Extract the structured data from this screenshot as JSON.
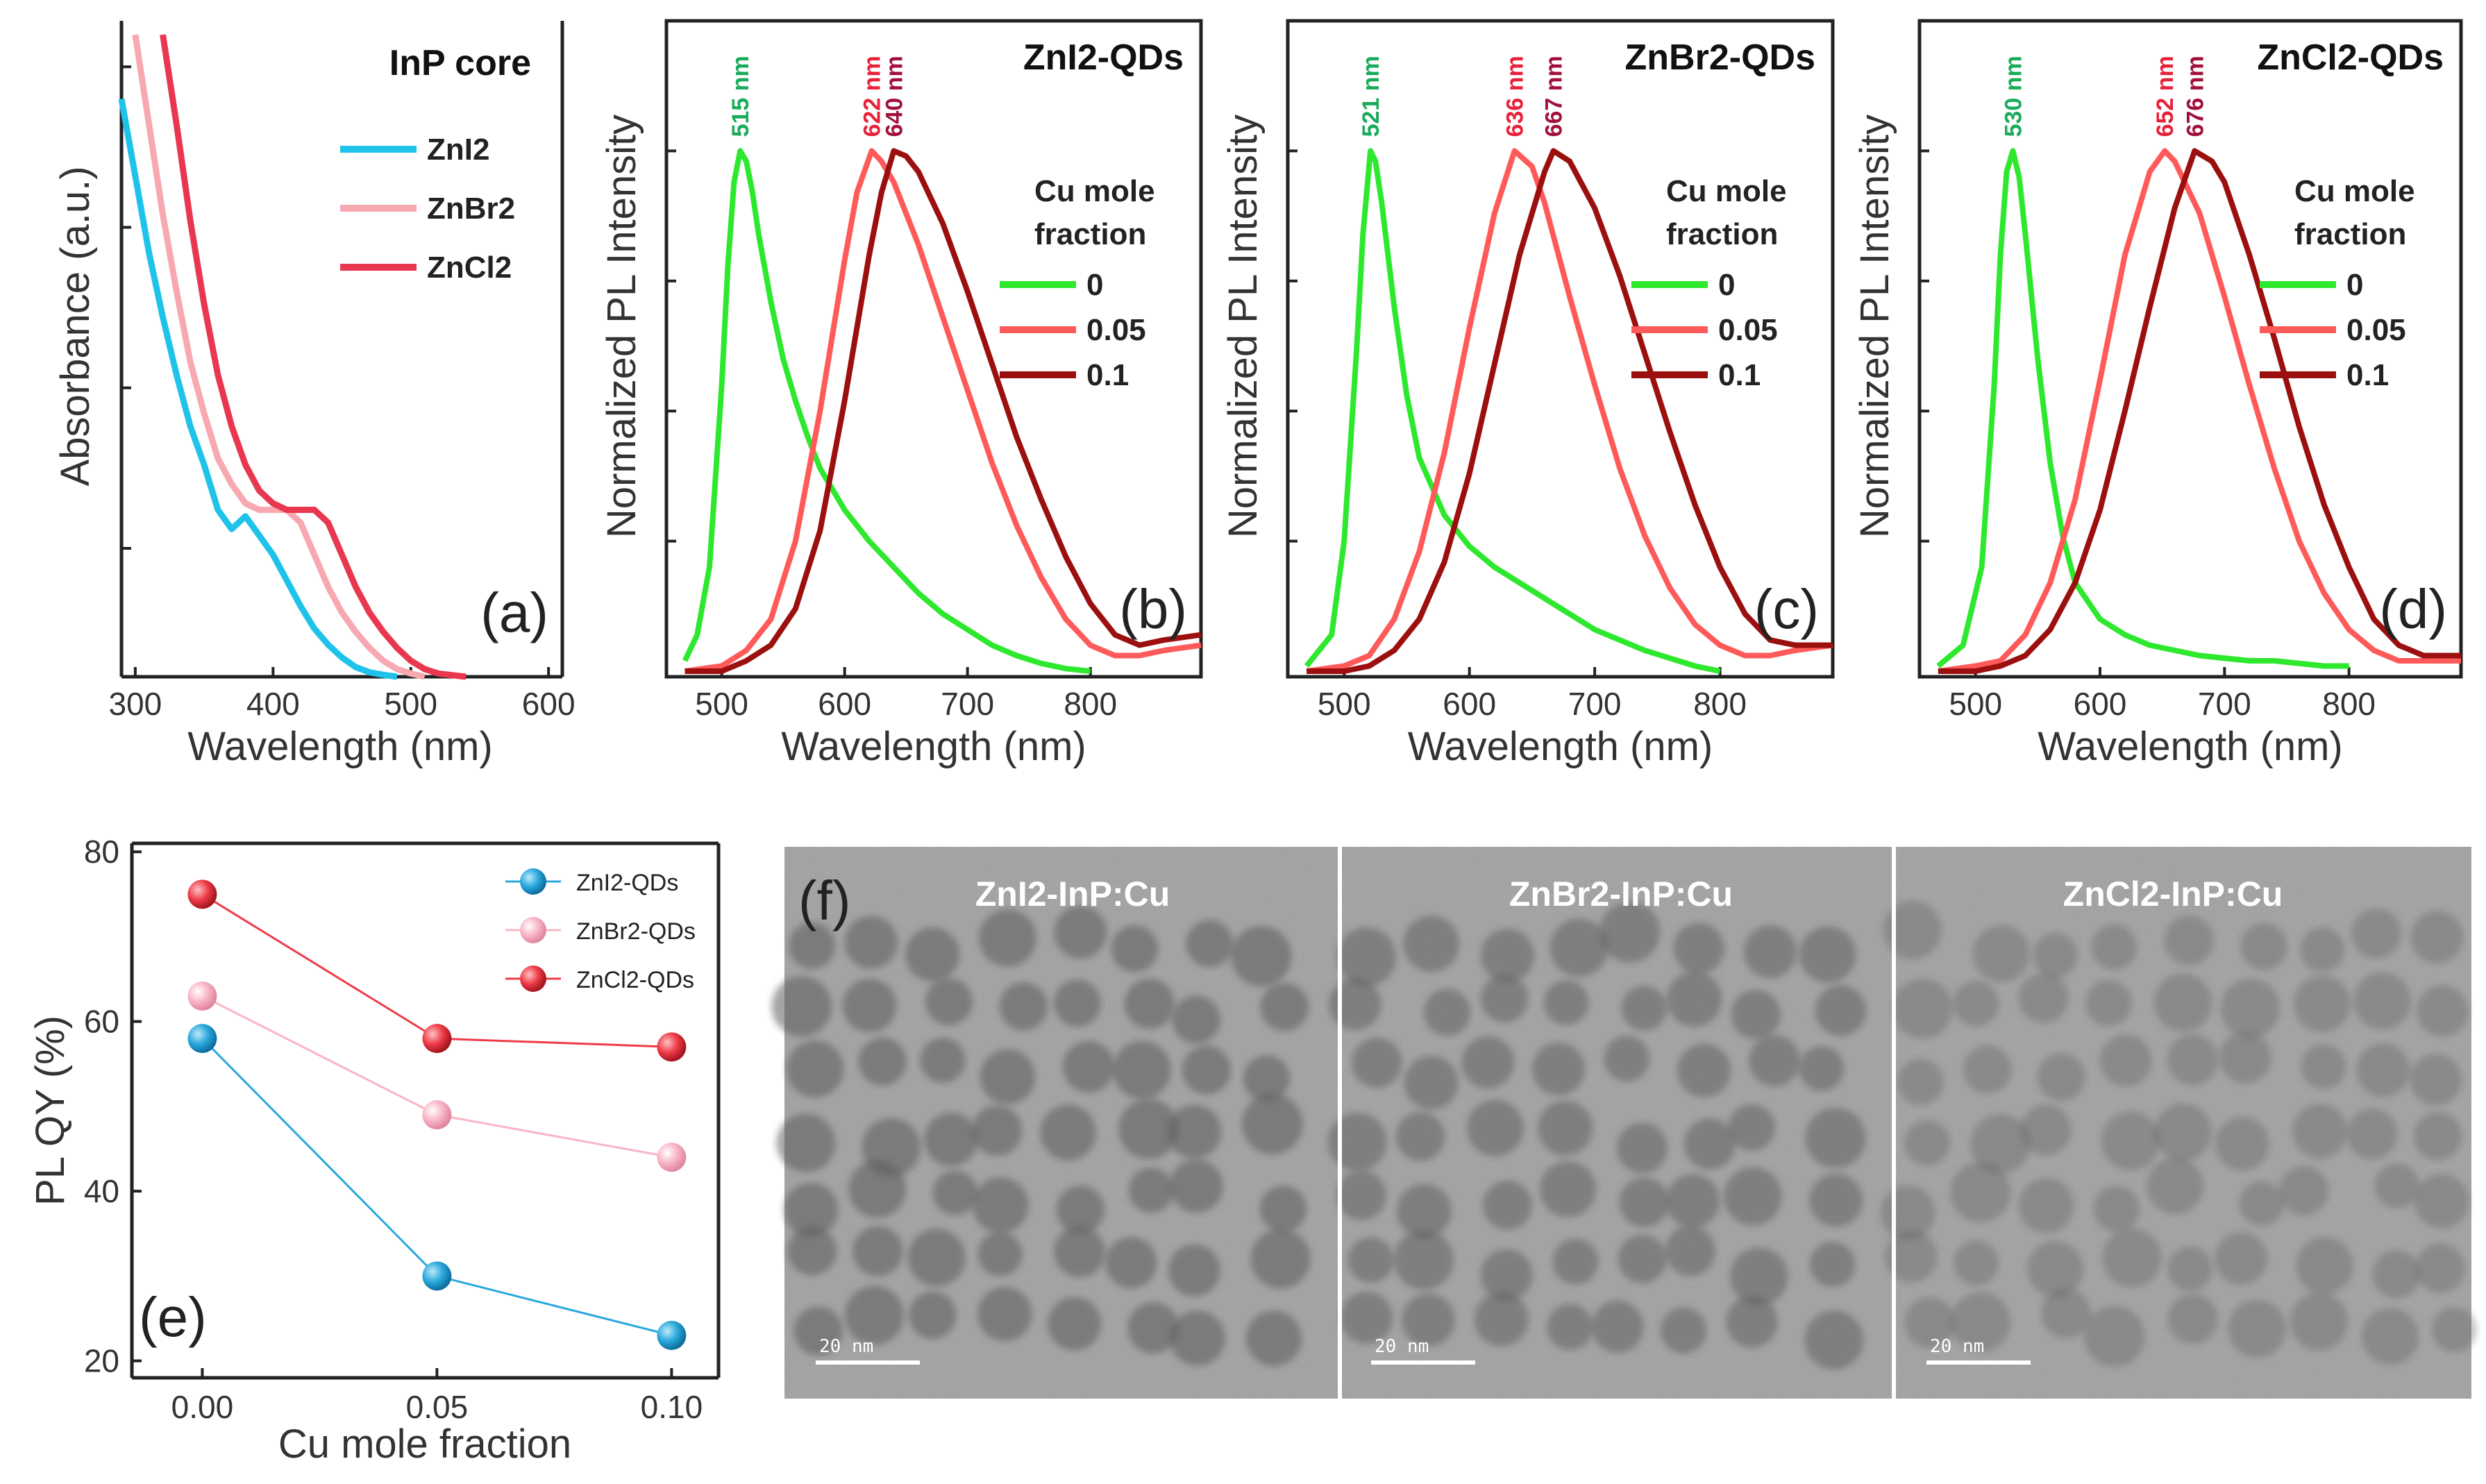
{
  "panels": {
    "a": {
      "letter": "(a)",
      "title": "InP core",
      "xlabel": "Wavelength (nm)",
      "ylabel": "Absorbance (a.u.)",
      "xticks": [
        "300",
        "400",
        "500",
        "600"
      ],
      "legend": [
        "ZnI2",
        "ZnBr2",
        "ZnCl2"
      ]
    },
    "b": {
      "letter": "(b)",
      "title": "ZnI2-QDs",
      "xlabel": "Wavelength (nm)",
      "ylabel": "Normalized PL Intensity",
      "xticks": [
        "500",
        "600",
        "700",
        "800"
      ],
      "legend_title": [
        "Cu mole",
        "fraction"
      ],
      "legend": [
        "0",
        "0.05",
        "0.1"
      ],
      "peaks": [
        "515 nm",
        "622 nm",
        "640 nm"
      ]
    },
    "c": {
      "letter": "(c)",
      "title": "ZnBr2-QDs",
      "xlabel": "Wavelength (nm)",
      "ylabel": "Normalized PL Intensity",
      "xticks": [
        "500",
        "600",
        "700",
        "800"
      ],
      "legend_title": [
        "Cu mole",
        "fraction"
      ],
      "legend": [
        "0",
        "0.05",
        "0.1"
      ],
      "peaks": [
        "521 nm",
        "636 nm",
        "667 nm"
      ]
    },
    "d": {
      "letter": "(d)",
      "title": "ZnCl2-QDs",
      "xlabel": "Wavelength (nm)",
      "ylabel": "Normalized PL Intensity",
      "xticks": [
        "500",
        "600",
        "700",
        "800"
      ],
      "legend_title": [
        "Cu mole",
        "fraction"
      ],
      "legend": [
        "0",
        "0.05",
        "0.1"
      ],
      "peaks": [
        "530 nm",
        "652 nm",
        "676 nm"
      ]
    },
    "e": {
      "letter": "(e)",
      "xlabel": "Cu mole fraction",
      "ylabel": "PL QY (%)",
      "xticks": [
        "0.00",
        "0.05",
        "0.10"
      ],
      "yticks": [
        "20",
        "40",
        "60",
        "80"
      ],
      "legend": [
        "ZnI2-QDs",
        "ZnBr2-QDs",
        "ZnCl2-QDs"
      ]
    },
    "f": {
      "letter": "(f)",
      "labels": [
        "ZnI2-InP:Cu",
        "ZnBr2-InP:Cu",
        "ZnCl2-InP:Cu"
      ],
      "scale_bar": "20 nm"
    }
  },
  "colors": {
    "green": "#2ee82e",
    "pink": "#ff5a5a",
    "darkred": "#9b0f0f",
    "cyan": "#1fc3ea",
    "lightpink": "#f7a8b0",
    "crimson": "#e8374f",
    "peak_green": "#1aab5a",
    "peak_red": "#e8213a",
    "peak_dark": "#a0103a",
    "qy_blue": "#2aa8dc",
    "qy_pink": "#f9b4c6",
    "qy_red": "#ee3b48"
  },
  "chart_data": [
    {
      "panel": "a",
      "type": "line",
      "title": "InP core",
      "xlabel": "Wavelength (nm)",
      "ylabel": "Absorbance (a.u.)",
      "xlim": [
        290,
        610
      ],
      "series": [
        {
          "name": "ZnI2",
          "x": [
            290,
            300,
            310,
            320,
            330,
            340,
            350,
            360,
            370,
            380,
            390,
            400,
            410,
            420,
            430,
            440,
            450,
            460,
            470,
            480,
            490
          ],
          "y": [
            0.9,
            0.78,
            0.66,
            0.56,
            0.47,
            0.39,
            0.33,
            0.26,
            0.23,
            0.25,
            0.22,
            0.19,
            0.15,
            0.11,
            0.075,
            0.05,
            0.03,
            0.015,
            0.007,
            0.003,
            0.0
          ]
        },
        {
          "name": "ZnBr2",
          "x": [
            300,
            310,
            320,
            330,
            340,
            350,
            360,
            370,
            380,
            390,
            400,
            410,
            420,
            430,
            440,
            450,
            460,
            470,
            480,
            490,
            500,
            510
          ],
          "y": [
            1.0,
            0.86,
            0.72,
            0.6,
            0.49,
            0.41,
            0.34,
            0.3,
            0.27,
            0.26,
            0.26,
            0.26,
            0.24,
            0.19,
            0.14,
            0.1,
            0.07,
            0.045,
            0.025,
            0.012,
            0.005,
            0.0
          ]
        },
        {
          "name": "ZnCl2",
          "x": [
            320,
            330,
            340,
            350,
            360,
            370,
            380,
            390,
            400,
            410,
            420,
            430,
            440,
            450,
            460,
            470,
            480,
            490,
            500,
            510,
            520,
            540
          ],
          "y": [
            1.0,
            0.86,
            0.71,
            0.58,
            0.47,
            0.39,
            0.33,
            0.29,
            0.27,
            0.26,
            0.26,
            0.26,
            0.24,
            0.19,
            0.14,
            0.1,
            0.07,
            0.045,
            0.025,
            0.012,
            0.005,
            0.0
          ]
        }
      ]
    },
    {
      "panel": "b",
      "type": "line",
      "title": "ZnI2-QDs",
      "xlabel": "Wavelength (nm)",
      "ylabel": "Normalized PL Intensity",
      "xlim": [
        455,
        890
      ],
      "ylim": [
        0,
        1.25
      ],
      "series": [
        {
          "name": "0",
          "x": [
            470,
            480,
            490,
            500,
            505,
            510,
            515,
            520,
            525,
            530,
            540,
            550,
            560,
            570,
            580,
            600,
            620,
            640,
            660,
            680,
            700,
            720,
            740,
            760,
            780,
            800
          ],
          "y": [
            0.02,
            0.07,
            0.2,
            0.55,
            0.78,
            0.94,
            1.0,
            0.98,
            0.92,
            0.84,
            0.71,
            0.6,
            0.52,
            0.45,
            0.39,
            0.31,
            0.25,
            0.2,
            0.15,
            0.11,
            0.08,
            0.05,
            0.03,
            0.015,
            0.005,
            0.0
          ]
        },
        {
          "name": "0.05",
          "x": [
            470,
            500,
            520,
            540,
            560,
            580,
            600,
            610,
            622,
            630,
            640,
            660,
            680,
            700,
            720,
            740,
            760,
            780,
            800,
            820,
            840,
            860,
            890
          ],
          "y": [
            0.0,
            0.01,
            0.04,
            0.1,
            0.25,
            0.5,
            0.79,
            0.92,
            1.0,
            0.98,
            0.94,
            0.82,
            0.68,
            0.54,
            0.4,
            0.28,
            0.18,
            0.1,
            0.05,
            0.03,
            0.03,
            0.04,
            0.05
          ]
        },
        {
          "name": "0.1",
          "x": [
            470,
            500,
            520,
            540,
            560,
            580,
            600,
            620,
            630,
            640,
            650,
            660,
            680,
            700,
            720,
            740,
            760,
            780,
            800,
            820,
            840,
            860,
            890
          ],
          "y": [
            0.0,
            0.0,
            0.02,
            0.05,
            0.12,
            0.27,
            0.52,
            0.8,
            0.92,
            1.0,
            0.99,
            0.96,
            0.86,
            0.73,
            0.59,
            0.45,
            0.33,
            0.22,
            0.13,
            0.07,
            0.05,
            0.06,
            0.07
          ]
        }
      ]
    },
    {
      "panel": "c",
      "type": "line",
      "title": "ZnBr2-QDs",
      "xlabel": "Wavelength (nm)",
      "ylabel": "Normalized PL Intensity",
      "xlim": [
        455,
        890
      ],
      "ylim": [
        0,
        1.25
      ],
      "series": [
        {
          "name": "0",
          "x": [
            470,
            490,
            500,
            510,
            515,
            521,
            525,
            530,
            540,
            550,
            560,
            580,
            600,
            620,
            640,
            660,
            680,
            700,
            720,
            740,
            760,
            780,
            800
          ],
          "y": [
            0.01,
            0.07,
            0.25,
            0.62,
            0.84,
            1.0,
            0.98,
            0.9,
            0.7,
            0.53,
            0.41,
            0.3,
            0.24,
            0.2,
            0.17,
            0.14,
            0.11,
            0.08,
            0.06,
            0.04,
            0.025,
            0.01,
            0.0
          ]
        },
        {
          "name": "0.05",
          "x": [
            470,
            500,
            520,
            540,
            560,
            580,
            600,
            620,
            636,
            650,
            660,
            680,
            700,
            720,
            740,
            760,
            780,
            800,
            820,
            840,
            860,
            890
          ],
          "y": [
            0.0,
            0.01,
            0.03,
            0.1,
            0.23,
            0.42,
            0.66,
            0.88,
            1.0,
            0.97,
            0.9,
            0.72,
            0.55,
            0.39,
            0.26,
            0.16,
            0.09,
            0.05,
            0.03,
            0.03,
            0.04,
            0.05
          ]
        },
        {
          "name": "0.1",
          "x": [
            470,
            500,
            520,
            540,
            560,
            580,
            600,
            620,
            640,
            660,
            667,
            680,
            700,
            720,
            740,
            760,
            780,
            800,
            820,
            840,
            860,
            890
          ],
          "y": [
            0.0,
            0.0,
            0.01,
            0.04,
            0.1,
            0.21,
            0.38,
            0.59,
            0.8,
            0.96,
            1.0,
            0.98,
            0.89,
            0.76,
            0.61,
            0.46,
            0.32,
            0.2,
            0.11,
            0.06,
            0.05,
            0.05
          ]
        }
      ]
    },
    {
      "panel": "d",
      "type": "line",
      "title": "ZnCl2-QDs",
      "xlabel": "Wavelength (nm)",
      "ylabel": "Normalized PL Intensity",
      "xlim": [
        455,
        890
      ],
      "ylim": [
        0,
        1.25
      ],
      "series": [
        {
          "name": "0",
          "x": [
            470,
            490,
            505,
            515,
            520,
            525,
            530,
            535,
            540,
            550,
            560,
            570,
            580,
            600,
            620,
            640,
            660,
            680,
            700,
            720,
            740,
            760,
            780,
            800
          ],
          "y": [
            0.01,
            0.05,
            0.2,
            0.55,
            0.8,
            0.96,
            1.0,
            0.95,
            0.84,
            0.6,
            0.4,
            0.26,
            0.17,
            0.1,
            0.07,
            0.05,
            0.04,
            0.03,
            0.025,
            0.02,
            0.02,
            0.015,
            0.01,
            0.01
          ]
        },
        {
          "name": "0.05",
          "x": [
            470,
            500,
            520,
            540,
            560,
            580,
            600,
            620,
            640,
            652,
            660,
            680,
            700,
            720,
            740,
            760,
            780,
            800,
            820,
            840,
            860,
            890
          ],
          "y": [
            0.0,
            0.01,
            0.02,
            0.07,
            0.17,
            0.33,
            0.56,
            0.8,
            0.96,
            1.0,
            0.98,
            0.88,
            0.72,
            0.55,
            0.39,
            0.25,
            0.15,
            0.08,
            0.04,
            0.02,
            0.02,
            0.02
          ]
        },
        {
          "name": "0.1",
          "x": [
            470,
            500,
            520,
            540,
            560,
            580,
            600,
            620,
            640,
            660,
            676,
            690,
            700,
            720,
            740,
            760,
            780,
            800,
            820,
            840,
            860,
            890
          ],
          "y": [
            0.0,
            0.0,
            0.01,
            0.03,
            0.08,
            0.17,
            0.31,
            0.5,
            0.7,
            0.89,
            1.0,
            0.98,
            0.94,
            0.8,
            0.64,
            0.47,
            0.32,
            0.2,
            0.1,
            0.05,
            0.03,
            0.03
          ]
        }
      ]
    },
    {
      "panel": "e",
      "type": "line",
      "xlabel": "Cu mole fraction",
      "ylabel": "PL QY (%)",
      "x": [
        0.0,
        0.05,
        0.1
      ],
      "xlim": [
        -0.015,
        0.11
      ],
      "ylim": [
        18,
        81
      ],
      "series": [
        {
          "name": "ZnI2-QDs",
          "values": [
            58,
            30,
            23
          ]
        },
        {
          "name": "ZnBr2-QDs",
          "values": [
            63,
            49,
            44
          ]
        },
        {
          "name": "ZnCl2-QDs",
          "values": [
            75,
            58,
            57
          ]
        }
      ]
    }
  ]
}
